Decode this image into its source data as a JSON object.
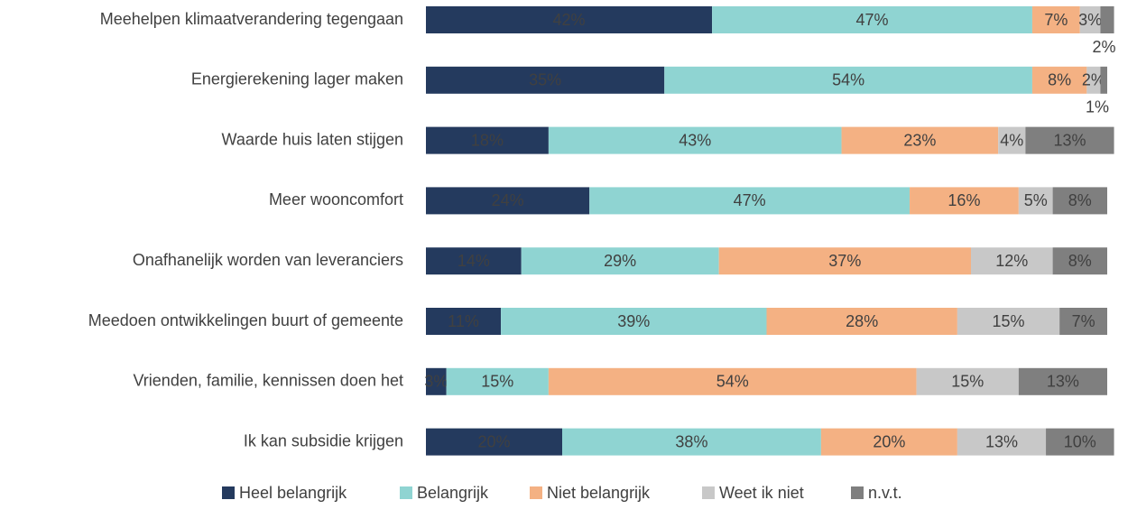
{
  "chart_data": {
    "type": "stacked-bar-horizontal",
    "categories": [
      "Meehelpen klimaatverandering tegengaan",
      "Energierekening lager maken",
      "Waarde huis laten stijgen",
      "Meer wooncomfort",
      "Onafhanelijk worden van leveranciers",
      "Meedoen ontwikkelingen buurt of gemeente",
      "Vrienden, familie, kennissen doen het",
      "Ik kan subsidie krijgen"
    ],
    "series": [
      {
        "name": "Heel belangrijk",
        "color": "#243a5e",
        "values": [
          42,
          35,
          18,
          24,
          14,
          11,
          3,
          20
        ],
        "value_labels": [
          "42%",
          "35%",
          "18%",
          "24%",
          "14%",
          "11%",
          "3%",
          "20%"
        ]
      },
      {
        "name": "Belangrijk",
        "color": "#8fd4d2",
        "values": [
          47,
          54,
          43,
          47,
          29,
          39,
          15,
          38
        ],
        "value_labels": [
          "47%",
          "54%",
          "43%",
          "47%",
          "29%",
          "39%",
          "15%",
          "38%"
        ]
      },
      {
        "name": "Niet belangrijk",
        "color": "#f4b183",
        "values": [
          7,
          8,
          23,
          16,
          37,
          28,
          54,
          20
        ],
        "value_labels": [
          "7%",
          "8%",
          "23%",
          "16%",
          "37%",
          "28%",
          "54%",
          "20%"
        ]
      },
      {
        "name": "Weet ik niet",
        "color": "#c8c8c8",
        "values": [
          3,
          2,
          4,
          5,
          12,
          15,
          15,
          13
        ],
        "value_labels": [
          "3%",
          "2%",
          "4%",
          "5%",
          "12%",
          "15%",
          "15%",
          "13%"
        ]
      },
      {
        "name": "n.v.t.",
        "color": "#7f7f7f",
        "values": [
          2,
          1,
          13,
          8,
          8,
          7,
          13,
          10
        ],
        "value_labels": [
          "2%",
          "1%",
          "13%",
          "8%",
          "8%",
          "7%",
          "13%",
          "10%"
        ]
      }
    ],
    "legend": "bottom"
  }
}
